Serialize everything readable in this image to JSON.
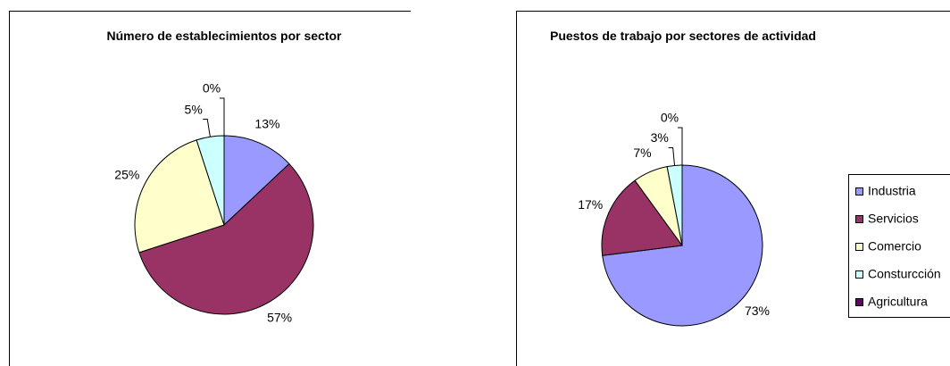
{
  "chart_data": [
    {
      "type": "pie",
      "title": "Número de establecimientos por sector",
      "values": [
        13,
        57,
        25,
        5,
        0
      ],
      "value_labels": [
        "13%",
        "57%",
        "25%",
        "5%",
        "0%"
      ],
      "colors": [
        "#9999ff",
        "#993366",
        "#ffffcc",
        "#ccffff",
        "#660066"
      ],
      "legend": false
    },
    {
      "type": "pie",
      "title": "Puestos de trabajo por sectores de actividad",
      "categories": [
        "Industria",
        "Servicios",
        "Comercio",
        "Consturcción",
        "Agricultura"
      ],
      "values": [
        73,
        17,
        7,
        3,
        0
      ],
      "value_labels": [
        "73%",
        "17%",
        "7%",
        "3%",
        "0%"
      ],
      "colors": [
        "#9999ff",
        "#993366",
        "#ffffcc",
        "#ccffff",
        "#660066"
      ],
      "legend": true
    }
  ]
}
